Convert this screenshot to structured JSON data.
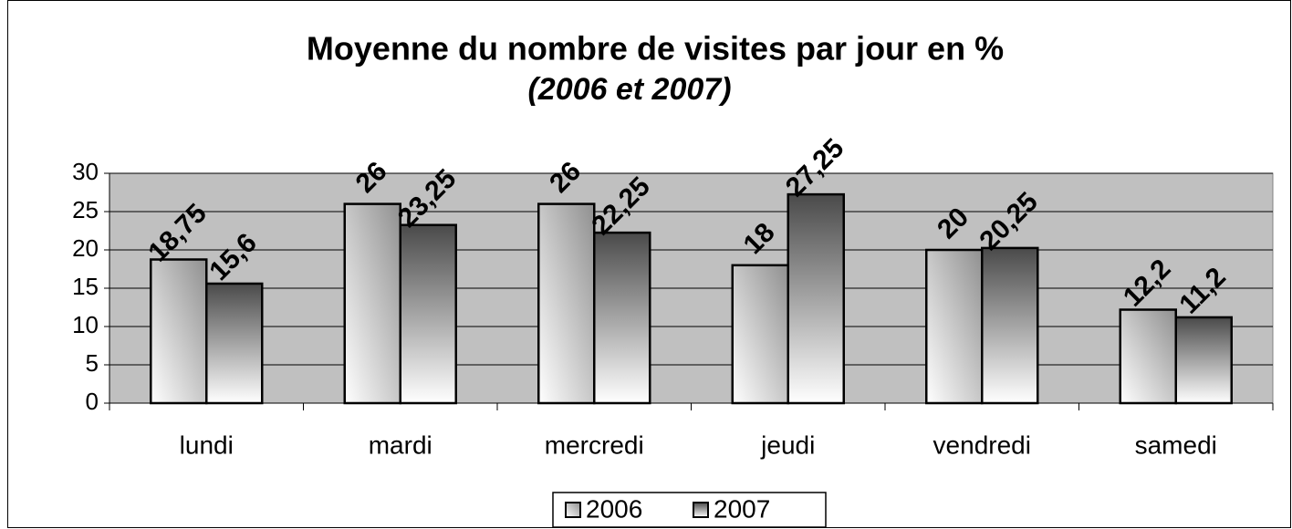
{
  "chart_data": {
    "type": "bar",
    "title": "Moyenne du nombre de visites par jour en %",
    "subtitle": "(2006 et 2007)",
    "categories": [
      "lundi",
      "mardi",
      "mercredi",
      "jeudi",
      "vendredi",
      "samedi"
    ],
    "series": [
      {
        "name": "2006",
        "color": "#909090",
        "values": [
          18.75,
          26,
          26,
          18,
          20,
          12.2
        ],
        "value_labels": [
          "18,75",
          "26",
          "26",
          "18",
          "20",
          "12,2"
        ]
      },
      {
        "name": "2007",
        "color": "#4a4a4a",
        "values": [
          15.6,
          23.25,
          22.25,
          27.25,
          20.25,
          11.2
        ],
        "value_labels": [
          "15,6",
          "23,25",
          "22,25",
          "27,25",
          "20,25",
          "11,2"
        ]
      }
    ],
    "ylim": [
      0,
      30
    ],
    "yticks": [
      0,
      5,
      10,
      15,
      20,
      25,
      30
    ],
    "grid": true,
    "legend": "bottom"
  }
}
